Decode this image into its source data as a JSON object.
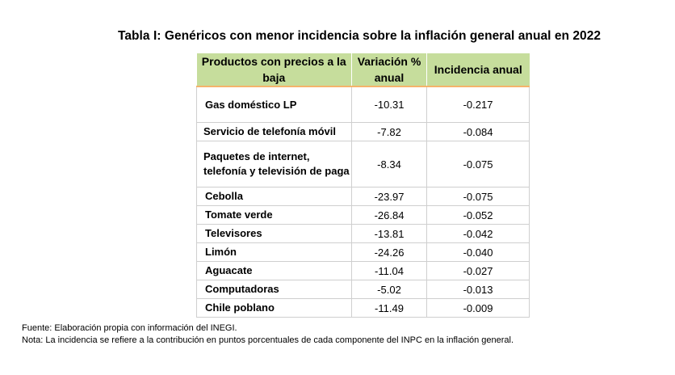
{
  "title": "Tabla I: Genéricos con menor incidencia sobre la inflación general anual en 2022",
  "columns": [
    "Productos con precios a la baja",
    "Variación % anual",
    "Incidencia anual"
  ],
  "rows": [
    {
      "name": "Gas doméstico LP",
      "variation": "-10.31",
      "incidence": "-0.217"
    },
    {
      "name": "Servicio de telefonía móvil",
      "variation": "-7.82",
      "incidence": "-0.084"
    },
    {
      "name": "Paquetes de internet, telefonía y televisión de paga",
      "variation": "-8.34",
      "incidence": "-0.075"
    },
    {
      "name": "Cebolla",
      "variation": "-23.97",
      "incidence": "-0.075"
    },
    {
      "name": "Tomate verde",
      "variation": "-26.84",
      "incidence": "-0.052"
    },
    {
      "name": "Televisores",
      "variation": "-13.81",
      "incidence": "-0.042"
    },
    {
      "name": "Limón",
      "variation": "-24.26",
      "incidence": "-0.040"
    },
    {
      "name": "Aguacate",
      "variation": "-11.04",
      "incidence": "-0.027"
    },
    {
      "name": "Computadoras",
      "variation": "-5.02",
      "incidence": "-0.013"
    },
    {
      "name": "Chile poblano",
      "variation": "-11.49",
      "incidence": "-0.009"
    }
  ],
  "source": "Fuente: Elaboración propia con información del INEGI.",
  "note": "Nota: La incidencia se refiere a la contribución en puntos porcentuales de cada componente del INPC en la inflación general.",
  "colors": {
    "header_bg": "#c6dd9c",
    "header_underline": "#f5b36b",
    "grid": "#cfcfcf"
  }
}
